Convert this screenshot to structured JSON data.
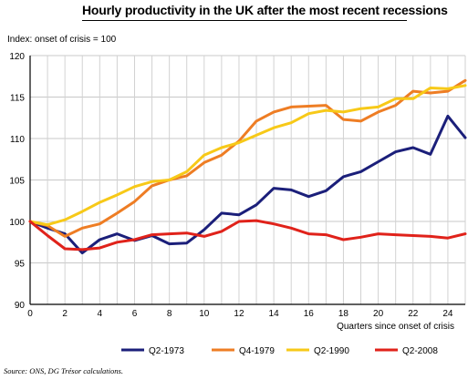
{
  "chart_data": {
    "type": "line",
    "title": "Hourly productivity in the UK after the most recent recessions",
    "ylabel": "Index: onset of crisis = 100",
    "xlabel": "Quarters since onset of crisis",
    "xlim": [
      0,
      25
    ],
    "ylim": [
      90,
      120
    ],
    "x_ticks": [
      0,
      2,
      4,
      6,
      8,
      10,
      12,
      14,
      16,
      18,
      20,
      22,
      24
    ],
    "y_ticks": [
      90,
      95,
      100,
      105,
      110,
      115,
      120
    ],
    "grid": true,
    "legend_position": "bottom",
    "x": [
      0,
      1,
      2,
      3,
      4,
      5,
      6,
      7,
      8,
      9,
      10,
      11,
      12,
      13,
      14,
      15,
      16,
      17,
      18,
      19,
      20,
      21,
      22,
      23,
      24,
      25
    ],
    "series": [
      {
        "name": "Q2-1973",
        "color": "#1b1f7a",
        "values": [
          100.0,
          99.2,
          98.5,
          96.2,
          97.8,
          98.5,
          97.7,
          98.3,
          97.3,
          97.4,
          99.0,
          101.0,
          100.8,
          102.0,
          104.0,
          103.8,
          103.0,
          103.7,
          105.4,
          106.0,
          107.2,
          108.4,
          108.9,
          108.1,
          112.7,
          110.1
        ]
      },
      {
        "name": "Q4-1979",
        "color": "#ee7d24",
        "values": [
          100.0,
          99.5,
          98.2,
          99.2,
          99.7,
          101.0,
          102.4,
          104.3,
          105.0,
          105.5,
          107.1,
          108.0,
          109.7,
          112.1,
          113.2,
          113.8,
          113.9,
          114.0,
          112.3,
          112.1,
          113.2,
          114.0,
          115.7,
          115.5,
          115.7,
          117.0
        ]
      },
      {
        "name": "Q2-1990",
        "color": "#f7c918",
        "values": [
          100.0,
          99.6,
          100.2,
          101.2,
          102.3,
          103.2,
          104.2,
          104.8,
          105.0,
          106.0,
          108.0,
          108.9,
          109.5,
          110.4,
          111.3,
          111.9,
          113.0,
          113.4,
          113.2,
          113.6,
          113.8,
          114.8,
          114.8,
          116.1,
          116.0,
          116.4
        ]
      },
      {
        "name": "Q2-2008",
        "color": "#e0221a",
        "values": [
          100.0,
          98.3,
          96.7,
          96.6,
          96.8,
          97.5,
          97.8,
          98.4,
          98.5,
          98.6,
          98.2,
          98.8,
          100.0,
          100.1,
          99.7,
          99.2,
          98.5,
          98.4,
          97.8,
          98.1,
          98.5,
          98.4,
          98.3,
          98.2,
          98.0,
          98.5
        ]
      }
    ]
  },
  "source": "Source: ONS, DG Trésor calculations."
}
